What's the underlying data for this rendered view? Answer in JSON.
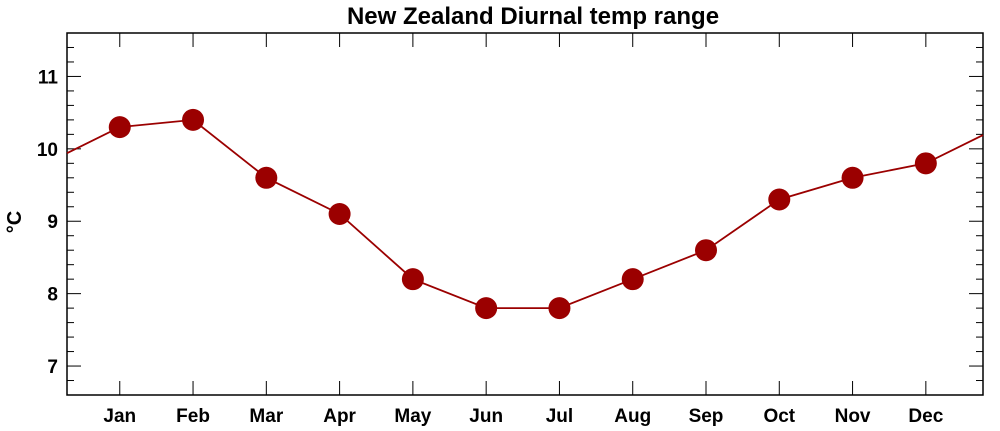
{
  "chart_data": {
    "type": "line",
    "title": "New Zealand Diurnal temp range",
    "ylabel": "°C",
    "xlabel": "",
    "categories": [
      "Jan",
      "Feb",
      "Mar",
      "Apr",
      "May",
      "Jun",
      "Jul",
      "Aug",
      "Sep",
      "Oct",
      "Nov",
      "Dec"
    ],
    "series": [
      {
        "values": [
          10.3,
          10.4,
          9.6,
          9.1,
          8.2,
          7.8,
          7.8,
          8.2,
          8.6,
          9.3,
          9.6,
          9.8
        ]
      }
    ],
    "ylim": [
      6.6,
      11.6
    ],
    "yticks": [
      7,
      8,
      9,
      10,
      11
    ],
    "grid": false,
    "colors": {
      "series": "#9b0000",
      "axis": "#000000"
    }
  }
}
